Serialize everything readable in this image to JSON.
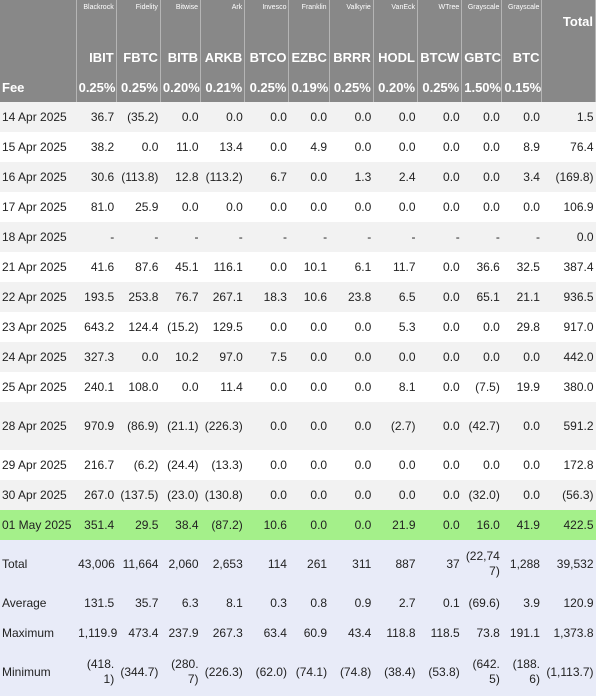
{
  "issuers": [
    "Blackrock",
    "Fidelity",
    "Bitwise",
    "Ark",
    "Invesco",
    "Franklin",
    "Valkyrie",
    "VanEck",
    "WTree",
    "Grayscale",
    "Grayscale"
  ],
  "total_header": "Total",
  "tickers": [
    "IBIT",
    "FBTC",
    "BITB",
    "ARKB",
    "BTCO",
    "EZBC",
    "BRRR",
    "HODL",
    "BTCW",
    "GBTC",
    "BTC"
  ],
  "fee_label": "Fee",
  "fees": [
    "0.25%",
    "0.25%",
    "0.20%",
    "0.21%",
    "0.25%",
    "0.19%",
    "0.25%",
    "0.20%",
    "0.25%",
    "1.50%",
    "0.15%"
  ],
  "rows": [
    {
      "date": "14 Apr 2025",
      "values": [
        "36.7",
        "(35.2)",
        "0.0",
        "0.0",
        "0.0",
        "0.0",
        "0.0",
        "0.0",
        "0.0",
        "0.0",
        "0.0"
      ],
      "total": "1.5"
    },
    {
      "date": "15 Apr 2025",
      "values": [
        "38.2",
        "0.0",
        "11.0",
        "13.4",
        "0.0",
        "4.9",
        "0.0",
        "0.0",
        "0.0",
        "0.0",
        "8.9"
      ],
      "total": "76.4"
    },
    {
      "date": "16 Apr 2025",
      "values": [
        "30.6",
        "(113.8)",
        "12.8",
        "(113.2)",
        "6.7",
        "0.0",
        "1.3",
        "2.4",
        "0.0",
        "0.0",
        "3.4"
      ],
      "total": "(169.8)"
    },
    {
      "date": "17 Apr 2025",
      "values": [
        "81.0",
        "25.9",
        "0.0",
        "0.0",
        "0.0",
        "0.0",
        "0.0",
        "0.0",
        "0.0",
        "0.0",
        "0.0"
      ],
      "total": "106.9"
    },
    {
      "date": "18 Apr 2025",
      "values": [
        "-",
        "-",
        "-",
        "-",
        "-",
        "-",
        "-",
        "-",
        "-",
        "-",
        "-"
      ],
      "total": "0.0"
    },
    {
      "date": "21 Apr 2025",
      "values": [
        "41.6",
        "87.6",
        "45.1",
        "116.1",
        "0.0",
        "10.1",
        "6.1",
        "11.7",
        "0.0",
        "36.6",
        "32.5"
      ],
      "total": "387.4"
    },
    {
      "date": "22 Apr 2025",
      "values": [
        "193.5",
        "253.8",
        "76.7",
        "267.1",
        "18.3",
        "10.6",
        "23.8",
        "6.5",
        "0.0",
        "65.1",
        "21.1"
      ],
      "total": "936.5"
    },
    {
      "date": "23 Apr 2025",
      "values": [
        "643.2",
        "124.4",
        "(15.2)",
        "129.5",
        "0.0",
        "0.0",
        "0.0",
        "5.3",
        "0.0",
        "0.0",
        "29.8"
      ],
      "total": "917.0"
    },
    {
      "date": "24 Apr 2025",
      "values": [
        "327.3",
        "0.0",
        "10.2",
        "97.0",
        "7.5",
        "0.0",
        "0.0",
        "0.0",
        "0.0",
        "0.0",
        "0.0"
      ],
      "total": "442.0"
    },
    {
      "date": "25 Apr 2025",
      "values": [
        "240.1",
        "108.0",
        "0.0",
        "11.4",
        "0.0",
        "0.0",
        "0.0",
        "8.1",
        "0.0",
        "(7.5)",
        "19.9"
      ],
      "total": "380.0"
    },
    {
      "date": "28 Apr 2025",
      "values": [
        "970.9",
        "(86.9)",
        "(21.1)",
        "(226.3)",
        "0.0",
        "0.0",
        "0.0",
        "(2.7)",
        "0.0",
        "(42.7)",
        "0.0"
      ],
      "total": "591.2"
    },
    {
      "date": "29 Apr 2025",
      "values": [
        "216.7",
        "(6.2)",
        "(24.4)",
        "(13.3)",
        "0.0",
        "0.0",
        "0.0",
        "0.0",
        "0.0",
        "0.0",
        "0.0"
      ],
      "total": "172.8"
    },
    {
      "date": "30 Apr 2025",
      "values": [
        "267.0",
        "(137.5)",
        "(23.0)",
        "(130.8)",
        "0.0",
        "0.0",
        "0.0",
        "0.0",
        "0.0",
        "(32.0)",
        "0.0"
      ],
      "total": "(56.3)"
    },
    {
      "date": "01 May 2025",
      "values": [
        "351.4",
        "29.5",
        "38.4",
        "(87.2)",
        "10.6",
        "0.0",
        "0.0",
        "21.9",
        "0.0",
        "16.0",
        "41.9"
      ],
      "total": "422.5"
    }
  ],
  "summary": [
    {
      "label": "Total",
      "values": [
        "43,006",
        "11,664",
        "2,060",
        "2,653",
        "114",
        "261",
        "311",
        "887",
        "37",
        "(22,747)",
        "1,288"
      ],
      "total": "39,532"
    },
    {
      "label": "Average",
      "values": [
        "131.5",
        "35.7",
        "6.3",
        "8.1",
        "0.3",
        "0.8",
        "0.9",
        "2.7",
        "0.1",
        "(69.6)",
        "3.9"
      ],
      "total": "120.9"
    },
    {
      "label": "Maximum",
      "values": [
        "1,119.9",
        "473.4",
        "237.9",
        "267.3",
        "63.4",
        "60.9",
        "43.4",
        "118.8",
        "118.5",
        "73.8",
        "191.1"
      ],
      "total": "1,373.8"
    },
    {
      "label": "Minimum",
      "values": [
        "(418.1)",
        "(344.7)",
        "(280.7)",
        "(226.3)",
        "(62.0)",
        "(74.1)",
        "(74.8)",
        "(38.4)",
        "(53.8)",
        "(642.5)",
        "(188.6)"
      ],
      "total": "(1,113.7)"
    }
  ],
  "colors": {
    "header_bg": "#888888",
    "alt_row": "#f2f2f2",
    "highlight_row": "#a4f08a",
    "summary_bg": "#e8ebf8",
    "negative": "#d9302b"
  }
}
